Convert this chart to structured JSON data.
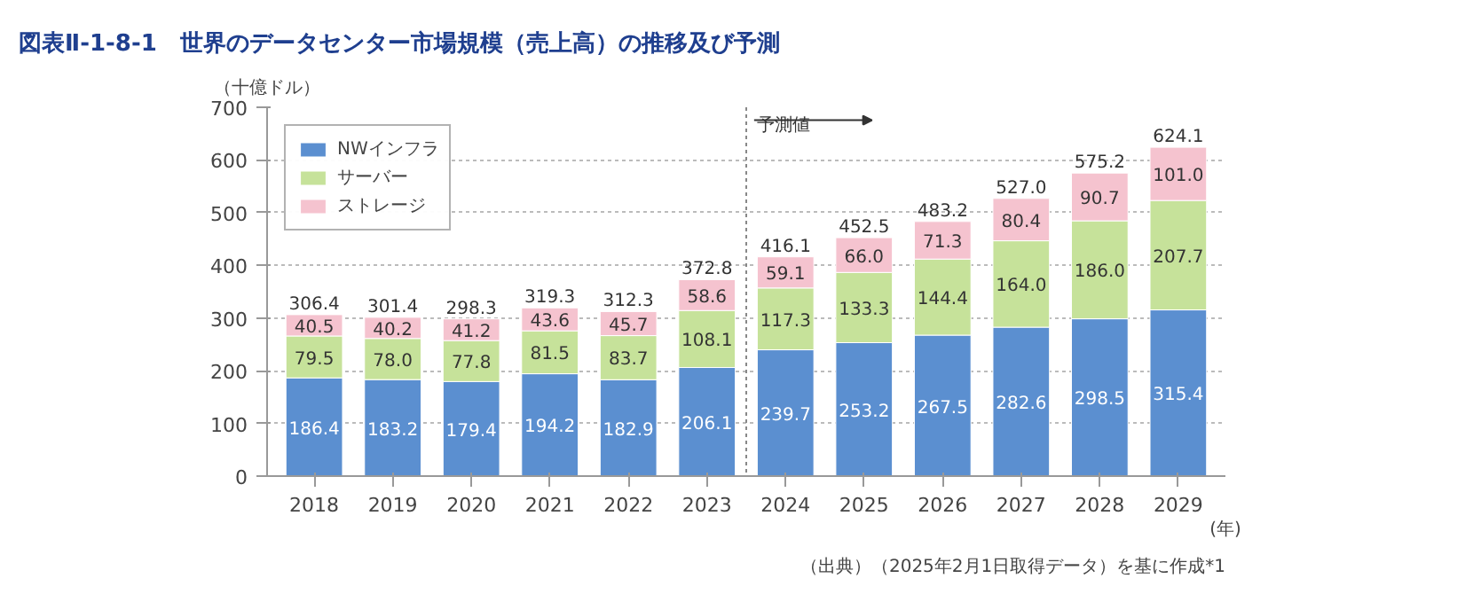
{
  "chart_data": {
    "type": "bar",
    "stacked": true,
    "title": "図表Ⅱ-1-8-1　世界のデータセンター市場規模（売上高）の推移及び予測",
    "ylabel": "（十億ドル）",
    "xlabel": "(年)",
    "categories": [
      "2018",
      "2019",
      "2020",
      "2021",
      "2022",
      "2023",
      "2024",
      "2025",
      "2026",
      "2027",
      "2028",
      "2029"
    ],
    "series": [
      {
        "name": "NWインフラ",
        "color": "#5b8fd0",
        "values": [
          186.4,
          183.2,
          179.4,
          194.2,
          182.9,
          206.1,
          239.7,
          253.2,
          267.5,
          282.6,
          298.5,
          315.4
        ],
        "value_labels": [
          "186.4",
          "183.2",
          "179.4",
          "194.2",
          "182.9",
          "206.1",
          "239.7",
          "253.2",
          "267.5",
          "282.6",
          "298.5",
          "315.4"
        ]
      },
      {
        "name": "サーバー",
        "color": "#c6e29a",
        "values": [
          79.5,
          78.0,
          77.8,
          81.5,
          83.7,
          108.1,
          117.3,
          133.3,
          144.4,
          164.0,
          186.0,
          207.7
        ],
        "value_labels": [
          "79.5",
          "78.0",
          "77.8",
          "81.5",
          "83.7",
          "108.1",
          "117.3",
          "133.3",
          "144.4",
          "164.0",
          "186.0",
          "207.7"
        ]
      },
      {
        "name": "ストレージ",
        "color": "#f5c3cf",
        "values": [
          40.5,
          40.2,
          41.2,
          43.6,
          45.7,
          58.6,
          59.1,
          66.0,
          71.3,
          80.4,
          90.7,
          101.0
        ],
        "value_labels": [
          "40.5",
          "40.2",
          "41.2",
          "43.6",
          "45.7",
          "58.6",
          "59.1",
          "66.0",
          "71.3",
          "80.4",
          "90.7",
          "101.0"
        ]
      }
    ],
    "totals": [
      "306.4",
      "301.4",
      "298.3",
      "319.3",
      "312.3",
      "372.8",
      "416.1",
      "452.5",
      "483.2",
      "527.0",
      "575.2",
      "624.1"
    ],
    "ylim": [
      0,
      700
    ],
    "yticks": [
      0,
      100,
      200,
      300,
      400,
      500,
      600,
      700
    ],
    "grid": "y",
    "legend": "top left",
    "ref_lines": [
      {
        "axis": "x",
        "value": "2024",
        "label": "予測値",
        "line_style": "dotted",
        "color": "#888888"
      }
    ],
    "annotations": [
      "（出典）（2025年2月1日取得データ）を基に作成*1"
    ]
  }
}
